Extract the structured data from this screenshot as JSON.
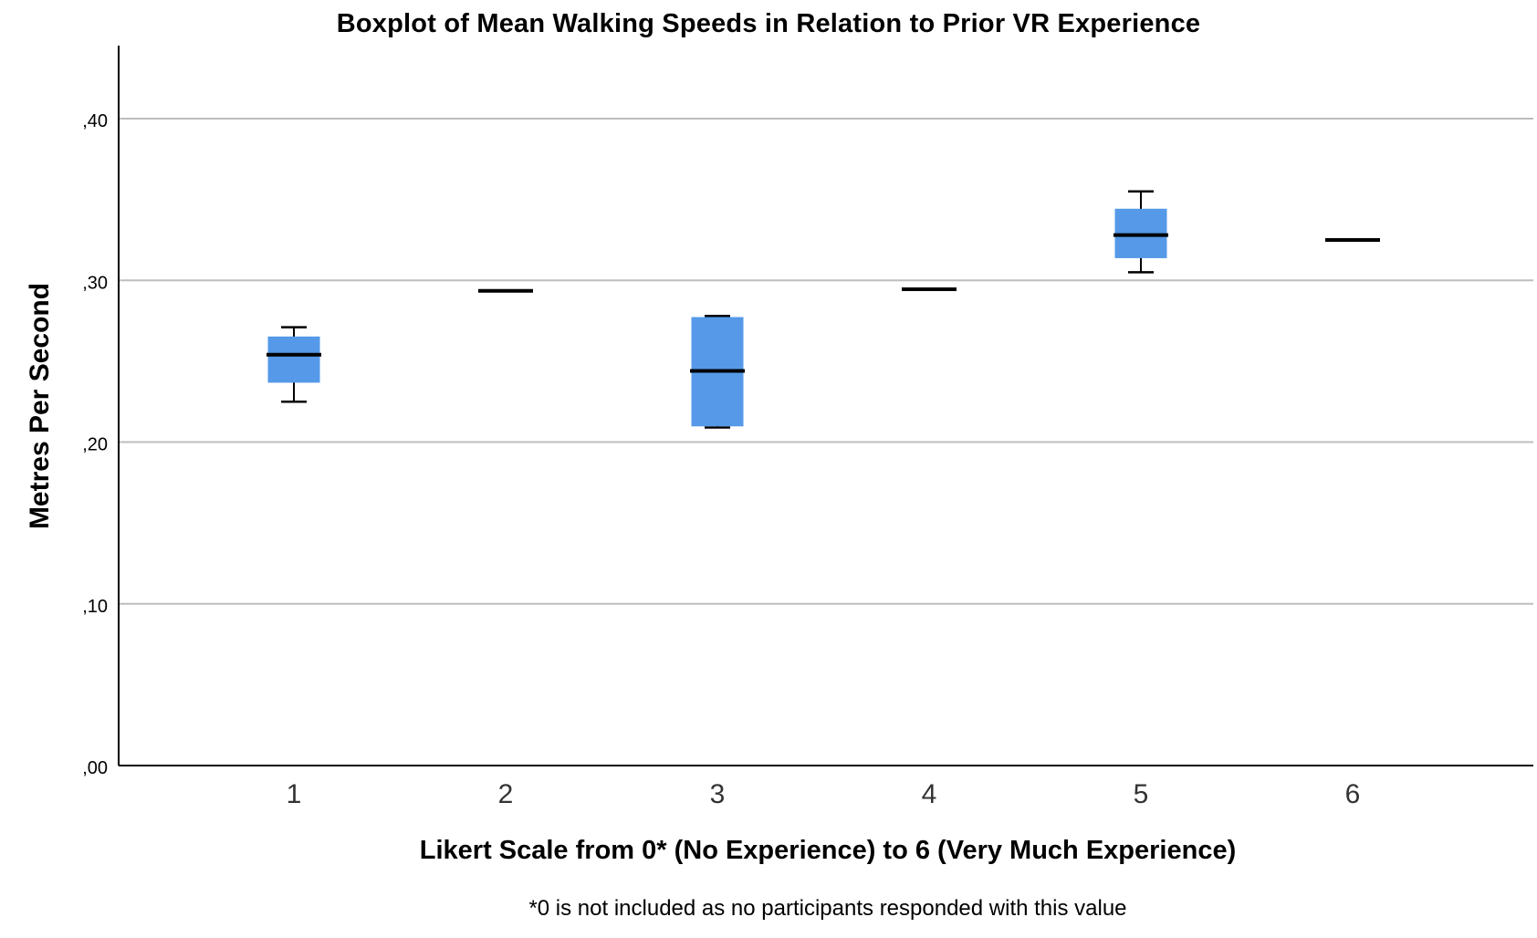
{
  "chart_data": {
    "type": "boxplot",
    "title": "Boxplot of Mean Walking Speeds in Relation to Prior VR Experience",
    "xlabel": "Likert Scale from 0* (No Experience) to 6 (Very Much Experience)",
    "ylabel": "Metres Per Second",
    "footnote": "*0 is not included as no participants responded with this value",
    "categories": [
      "1",
      "2",
      "3",
      "4",
      "5",
      "6"
    ],
    "y_ticks": [
      {
        "value": 0.0,
        "label": ",00"
      },
      {
        "value": 0.1,
        "label": ",10"
      },
      {
        "value": 0.2,
        "label": ",20"
      },
      {
        "value": 0.3,
        "label": ",30"
      },
      {
        "value": 0.4,
        "label": ",40"
      }
    ],
    "ylim": [
      0,
      0.445
    ],
    "grid": true,
    "box_color": "#5599e8",
    "series": [
      {
        "category": "1",
        "min": 0.225,
        "q1": 0.237,
        "median": 0.254,
        "q3": 0.265,
        "max": 0.271
      },
      {
        "category": "2",
        "min": 0.2935,
        "q1": 0.2935,
        "median": 0.2935,
        "q3": 0.2935,
        "max": 0.2935
      },
      {
        "category": "3",
        "min": 0.209,
        "q1": 0.21,
        "median": 0.244,
        "q3": 0.277,
        "max": 0.278
      },
      {
        "category": "4",
        "min": 0.2945,
        "q1": 0.2945,
        "median": 0.2945,
        "q3": 0.2945,
        "max": 0.2945
      },
      {
        "category": "5",
        "min": 0.305,
        "q1": 0.314,
        "median": 0.328,
        "q3": 0.344,
        "max": 0.355
      },
      {
        "category": "6",
        "min": 0.325,
        "q1": 0.325,
        "median": 0.325,
        "q3": 0.325,
        "max": 0.325
      }
    ]
  }
}
